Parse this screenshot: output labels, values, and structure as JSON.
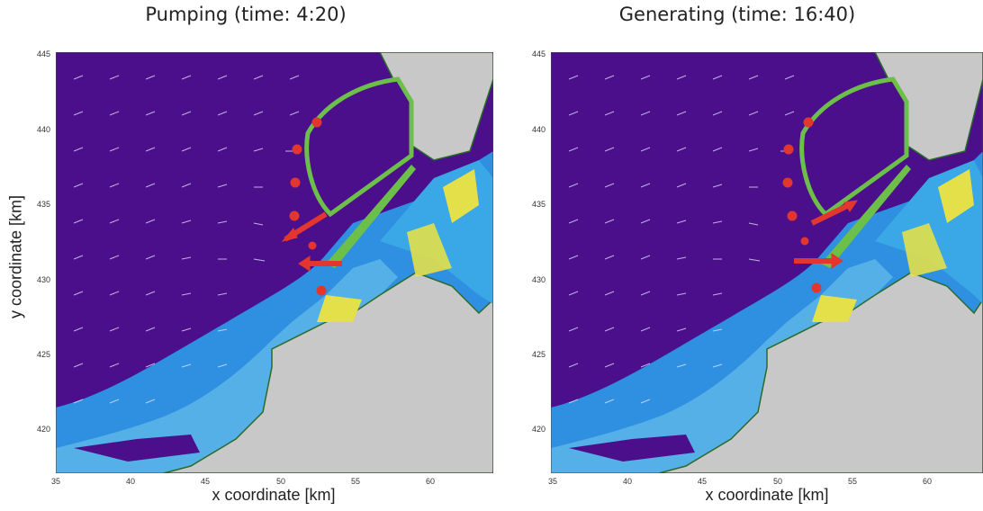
{
  "chart_data": [
    {
      "type": "heatmap",
      "title": "Pumping (time: 4:20)",
      "xlabel": "x coordinate [km]",
      "ylabel": "y coordinate [km]",
      "xlim": [
        35,
        64
      ],
      "ylim": [
        417,
        445
      ],
      "xticks": [
        "35",
        "40",
        "45",
        "50",
        "55",
        "60"
      ],
      "yticks": [
        "445",
        "440",
        "435",
        "430",
        "425",
        "420"
      ],
      "colors": {
        "deep": "#4b0f8c",
        "mid": "#2f8fe0",
        "shallow": "#e3e04a",
        "land": "#c8c8c8",
        "arrows": "#e3362e"
      }
    },
    {
      "type": "heatmap",
      "title": "Generating (time: 16:40)",
      "xlabel": "x coordinate [km]",
      "ylabel": "",
      "xlim": [
        35,
        64
      ],
      "ylim": [
        417,
        445
      ],
      "xticks": [
        "35",
        "40",
        "45",
        "50",
        "55",
        "60"
      ],
      "yticks": [
        "445",
        "440",
        "435",
        "430",
        "425",
        "420"
      ],
      "colors": {
        "deep": "#4b0f8c",
        "mid": "#2f8fe0",
        "shallow": "#e3e04a",
        "land": "#c8c8c8",
        "arrows": "#e3362e"
      }
    }
  ]
}
